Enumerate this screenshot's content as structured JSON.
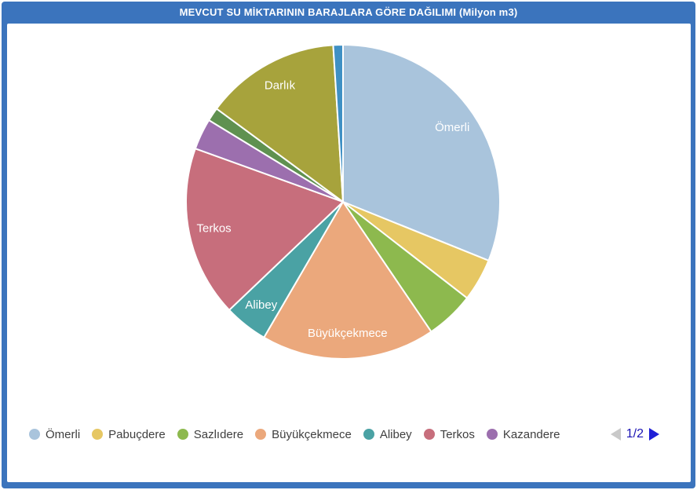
{
  "header": {
    "title": "MEVCUT SU MİKTARININ BARAJLARA GÖRE DAĞILIMI (Milyon m3)"
  },
  "colors": {
    "frame_blue": "#3b74bd",
    "title_text": "#ffffff",
    "legend_text": "#3f3f3f",
    "pager_text": "#1a13b4",
    "pager_next_arrow": "#1f1fd6",
    "pager_prev_arrow_disabled": "#c9c9c9",
    "slice_border": "#ffffff"
  },
  "chart_data": {
    "type": "pie",
    "title": "MEVCUT SU MİKTARININ BARAJLARA GÖRE DAĞILIMI (Milyon m3)",
    "unit": "Milyon m3",
    "start_angle_deg": 0,
    "direction": "clockwise",
    "legend_position": "bottom",
    "slices": [
      {
        "id": "omerli",
        "name": "Ömerli",
        "percent": 31.1,
        "color": "#a9c4dc",
        "label_visible": true
      },
      {
        "id": "pabucdere",
        "name": "Pabuçdere",
        "percent": 4.4,
        "color": "#e6c763",
        "label_visible": false
      },
      {
        "id": "sazlidere",
        "name": "Sazlıdere",
        "percent": 5.0,
        "color": "#8db94e",
        "label_visible": false
      },
      {
        "id": "buyukcekmece",
        "name": "Büyükçekmece",
        "percent": 17.9,
        "color": "#eba87c",
        "label_visible": true
      },
      {
        "id": "alibey",
        "name": "Alibey",
        "percent": 4.5,
        "color": "#4aa2a4",
        "label_visible": true
      },
      {
        "id": "terkos",
        "name": "Terkos",
        "percent": 17.6,
        "color": "#c76e7c",
        "label_visible": true
      },
      {
        "id": "kazandere",
        "name": "Kazandere",
        "percent": 3.2,
        "color": "#9c6fae",
        "label_visible": false
      },
      {
        "id": "unnamed-small-green",
        "name": "",
        "percent": 1.4,
        "color": "#5f9150",
        "label_visible": false
      },
      {
        "id": "darlik",
        "name": "Darlık",
        "percent": 13.9,
        "color": "#a7a33c",
        "label_visible": true
      },
      {
        "id": "unnamed-small-blue",
        "name": "",
        "percent": 1.0,
        "color": "#3f90c4",
        "label_visible": false
      }
    ]
  },
  "legend": {
    "items": [
      {
        "id": "omerli",
        "label": "Ömerli",
        "color": "#a9c4dc"
      },
      {
        "id": "pabucdere",
        "label": "Pabuçdere",
        "color": "#e6c763"
      },
      {
        "id": "sazlidere",
        "label": "Sazlıdere",
        "color": "#8db94e"
      },
      {
        "id": "buyukcekmece",
        "label": "Büyükçekmece",
        "color": "#eba87c"
      },
      {
        "id": "alibey",
        "label": "Alibey",
        "color": "#4aa2a4"
      },
      {
        "id": "terkos",
        "label": "Terkos",
        "color": "#c76e7c"
      },
      {
        "id": "kazandere",
        "label": "Kazandere",
        "color": "#9c6fae"
      }
    ],
    "pager": {
      "label": "1/2",
      "prev_enabled": false,
      "next_enabled": true
    }
  }
}
